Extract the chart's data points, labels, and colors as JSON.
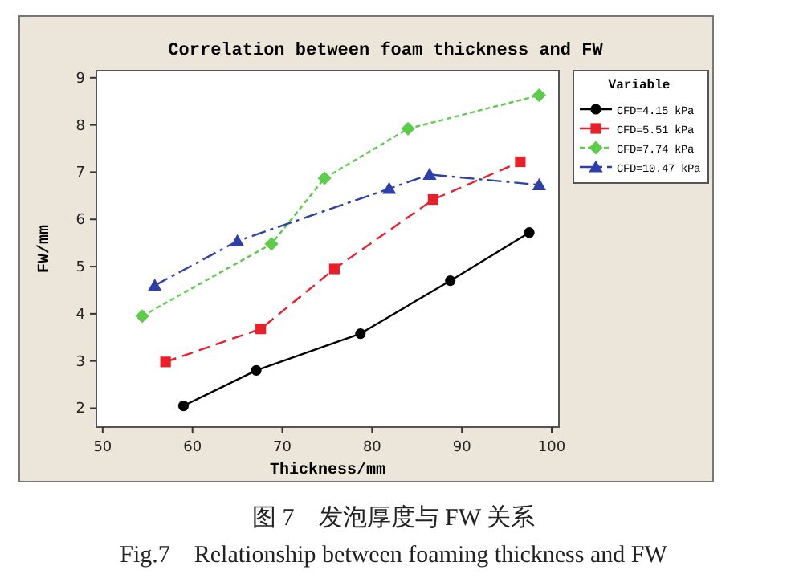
{
  "chart_data": {
    "type": "line",
    "title": "Correlation between foam thickness and FW",
    "xlabel": "Thickness/mm",
    "ylabel": "FW/mm",
    "legend_title": "Variable",
    "legend": "right",
    "grid": false,
    "xlim": [
      49.3,
      100.8
    ],
    "xticks": [
      50,
      60,
      70,
      80,
      90,
      100
    ],
    "ylim": [
      1.6,
      9.15
    ],
    "yticks": [
      2,
      3,
      4,
      5,
      6,
      7,
      8,
      9
    ],
    "series": [
      {
        "name": "CFD=4.15 kPa",
        "color": "#000000",
        "marker": "circle",
        "line_style": "solid",
        "x": [
          59,
          67.1,
          78.7,
          88.7,
          97.5
        ],
        "values": [
          2.05,
          2.8,
          3.58,
          4.7,
          5.72
        ]
      },
      {
        "name": "CFD=5.51 kPa",
        "color": "#e8202a",
        "marker": "square",
        "line_style": "dashed",
        "x": [
          57,
          67.6,
          75.8,
          86.8,
          96.5
        ],
        "values": [
          2.98,
          3.68,
          4.95,
          6.42,
          7.22
        ]
      },
      {
        "name": "CFD=7.74 kPa",
        "color": "#5dcc4b",
        "marker": "diamond",
        "line_style": "dotted",
        "x": [
          54.4,
          68.8,
          74.7,
          84,
          98.6
        ],
        "values": [
          3.95,
          5.48,
          6.87,
          7.92,
          8.63
        ]
      },
      {
        "name": "CFD=10.47 kPa",
        "color": "#2e3fa8",
        "marker": "triangle",
        "line_style": "dashdot",
        "x": [
          55.8,
          65,
          81.9,
          86.4,
          98.6
        ],
        "values": [
          4.6,
          5.54,
          6.65,
          6.95,
          6.73
        ]
      }
    ],
    "annotations": [
      "图 7　发泡厚度与 FW 关系",
      "Fig.7　Relationship between foaming thickness and FW"
    ]
  }
}
